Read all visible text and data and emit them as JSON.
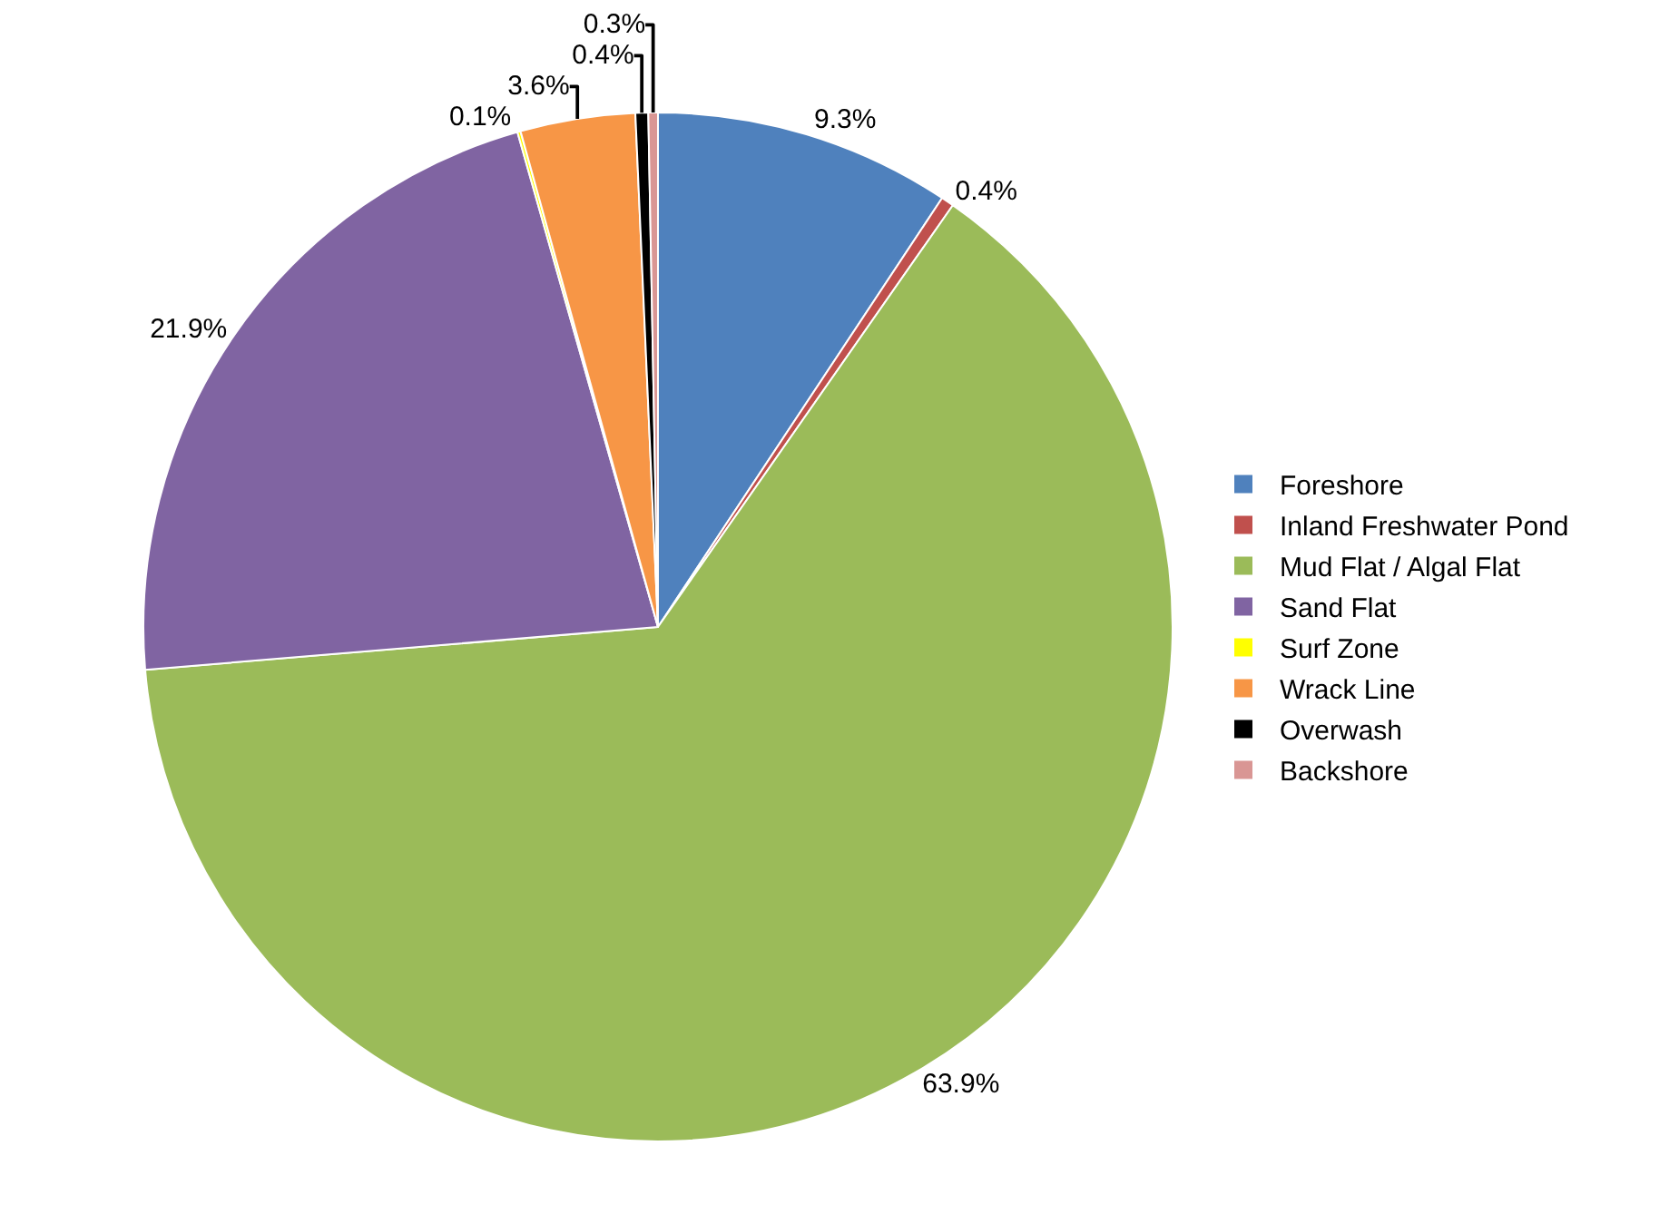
{
  "chart_data": {
    "type": "pie",
    "categories": [
      "Foreshore",
      "Inland Freshwater Pond",
      "Mud Flat / Algal Flat",
      "Sand Flat",
      "Surf Zone",
      "Wrack Line",
      "Overwash",
      "Backshore"
    ],
    "values": [
      9.3,
      0.4,
      63.9,
      21.9,
      0.1,
      3.6,
      0.4,
      0.3
    ],
    "value_labels": [
      "9.3%",
      "0.4%",
      "63.9%",
      "21.9%",
      "0.1%",
      "3.6%",
      "0.4%",
      "0.3%"
    ],
    "colors": [
      "#4f81bd",
      "#c0504d",
      "#9bbb59",
      "#8064a2",
      "#ffff00",
      "#f79646",
      "#000000",
      "#d99694"
    ],
    "legend": "right"
  }
}
